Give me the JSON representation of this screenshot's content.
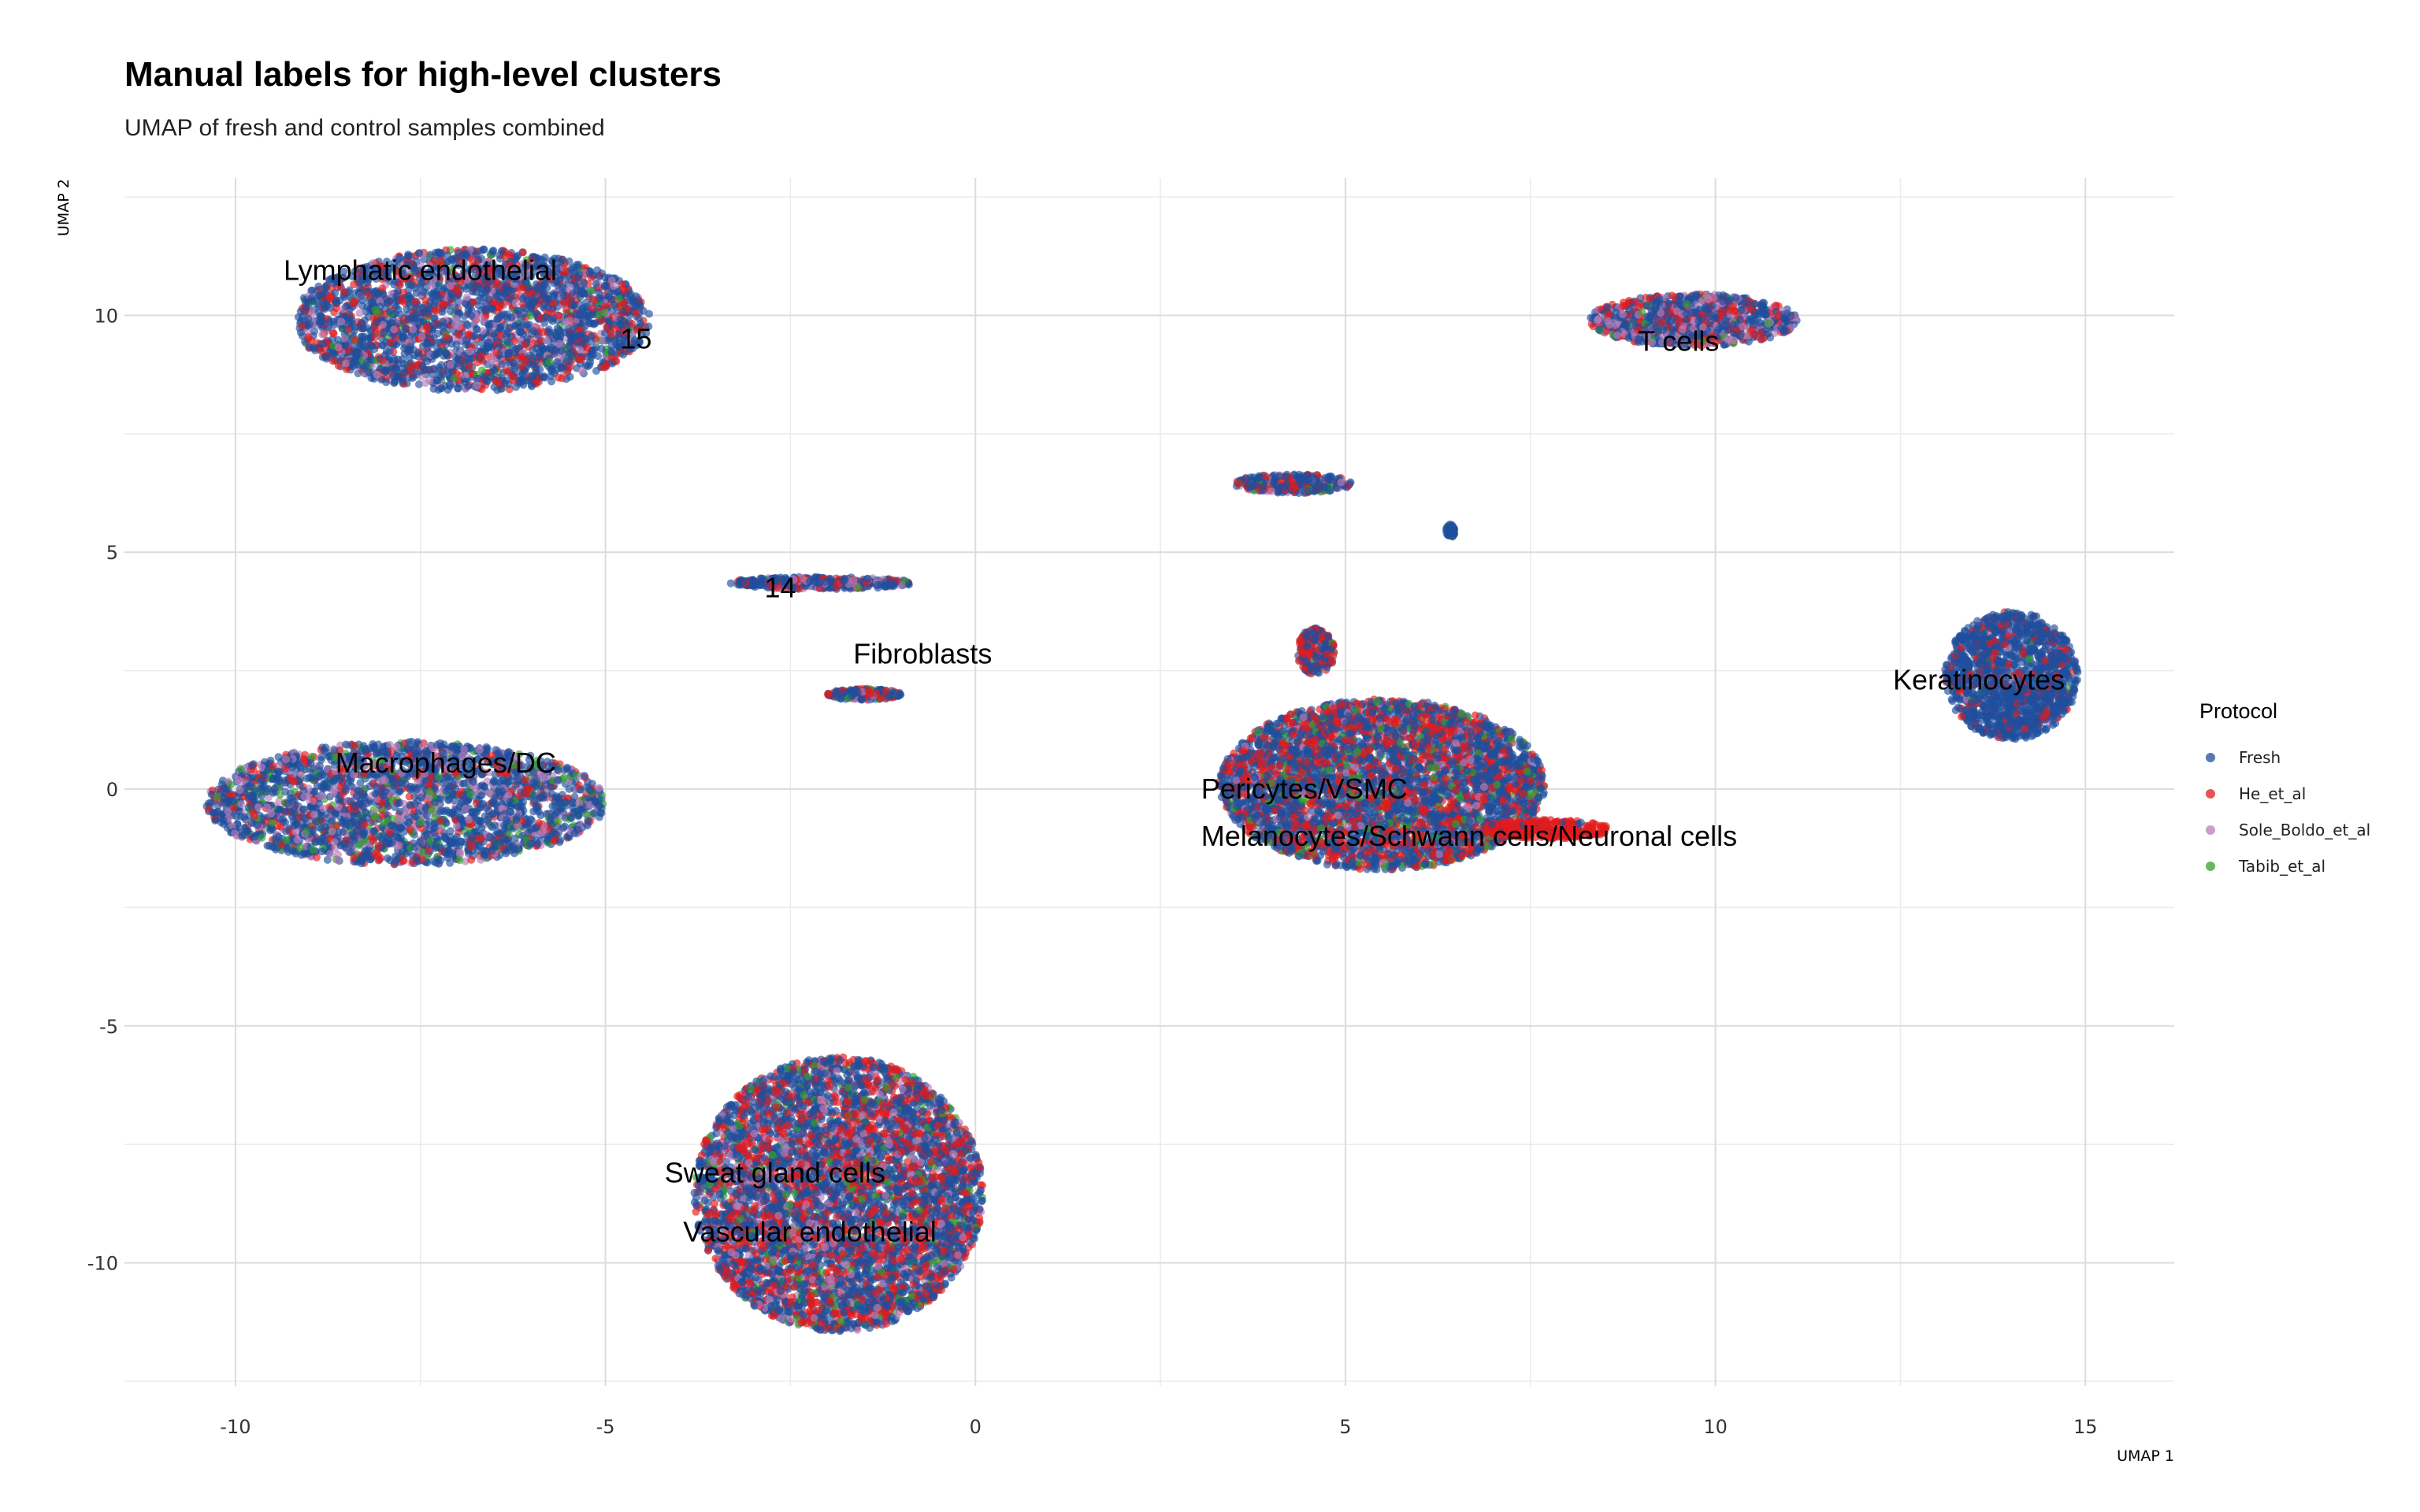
{
  "chart_data": {
    "type": "scatter",
    "title": "Manual labels for high-level clusters",
    "subtitle": "UMAP of fresh and control samples combined",
    "xlabel": "UMAP 1",
    "ylabel": "UMAP 2",
    "xlim": [
      -11.5,
      16.2
    ],
    "ylim": [
      -12.6,
      12.9
    ],
    "x_ticks": [
      -10,
      -5,
      0,
      5,
      10,
      15
    ],
    "y_ticks": [
      -10,
      -5,
      0,
      5,
      10
    ],
    "x_tick_labels": [
      "-10",
      "-5",
      "0",
      "5",
      "10",
      "15"
    ],
    "y_tick_labels": [
      "-10",
      "-5",
      "0",
      "5",
      "10"
    ],
    "grid": true,
    "legend": {
      "title": "Protocol",
      "position": "right",
      "entries": [
        {
          "name": "Fresh",
          "color": "#1f4e9c"
        },
        {
          "name": "He_et_al",
          "color": "#e31a1c"
        },
        {
          "name": "Sole_Boldo_et_al",
          "color": "#b87db8"
        },
        {
          "name": "Tabib_et_al",
          "color": "#33a02c"
        }
      ]
    },
    "series": [
      {
        "name": "Fresh",
        "color": "#1f4e9c"
      },
      {
        "name": "He_et_al",
        "color": "#e31a1c"
      },
      {
        "name": "Sole_Boldo_et_al",
        "color": "#b87db8"
      },
      {
        "name": "Tabib_et_al",
        "color": "#33a02c"
      }
    ],
    "clusters": [
      {
        "cx": -6.8,
        "cy": 9.9,
        "rx": 2.4,
        "ry": 1.5,
        "n": 2600,
        "mix": [
          0.66,
          0.2,
          0.1,
          0.04
        ]
      },
      {
        "cx": -7.7,
        "cy": -0.3,
        "rx": 2.7,
        "ry": 1.3,
        "n": 2600,
        "mix": [
          0.62,
          0.14,
          0.16,
          0.08
        ]
      },
      {
        "cx": -2.1,
        "cy": 4.35,
        "rx": 1.25,
        "ry": 0.13,
        "n": 400,
        "mix": [
          0.7,
          0.15,
          0.13,
          0.02
        ]
      },
      {
        "cx": -1.5,
        "cy": 2.0,
        "rx": 0.5,
        "ry": 0.12,
        "n": 200,
        "mix": [
          0.6,
          0.3,
          0.05,
          0.05
        ]
      },
      {
        "cx": 5.5,
        "cy": 0.1,
        "rx": 2.2,
        "ry": 1.8,
        "n": 4200,
        "mix": [
          0.58,
          0.3,
          0.05,
          0.07
        ]
      },
      {
        "cx": 4.6,
        "cy": 2.9,
        "rx": 0.25,
        "ry": 0.5,
        "n": 200,
        "mix": [
          0.5,
          0.45,
          0.02,
          0.03
        ]
      },
      {
        "cx": 7.7,
        "cy": -0.85,
        "rx": 0.9,
        "ry": 0.2,
        "n": 280,
        "mix": [
          0.15,
          0.85,
          0.0,
          0.0
        ]
      },
      {
        "cx": -1.85,
        "cy": -8.55,
        "rx": 1.95,
        "ry": 2.9,
        "n": 5200,
        "mix": [
          0.56,
          0.28,
          0.1,
          0.06
        ]
      },
      {
        "cx": 9.7,
        "cy": 9.9,
        "rx": 1.4,
        "ry": 0.55,
        "n": 1000,
        "mix": [
          0.54,
          0.22,
          0.22,
          0.02
        ]
      },
      {
        "cx": 4.3,
        "cy": 6.45,
        "rx": 0.8,
        "ry": 0.2,
        "n": 300,
        "mix": [
          0.66,
          0.22,
          0.06,
          0.06
        ]
      },
      {
        "cx": 6.42,
        "cy": 5.45,
        "rx": 0.06,
        "ry": 0.14,
        "n": 50,
        "mix": [
          0.84,
          0.0,
          0.0,
          0.16
        ]
      },
      {
        "cx": 14.0,
        "cy": 2.4,
        "rx": 0.9,
        "ry": 1.35,
        "n": 1400,
        "mix": [
          0.86,
          0.12,
          0.01,
          0.01
        ]
      }
    ],
    "annotations": [
      {
        "text": "Lymphatic endothelial",
        "x": -9.35,
        "y": 10.75
      },
      {
        "text": "15",
        "x": -4.8,
        "y": 9.3
      },
      {
        "text": "14",
        "x": -2.85,
        "y": 4.05
      },
      {
        "text": "Fibroblasts",
        "x": -1.65,
        "y": 2.65
      },
      {
        "text": "Macrophages/DC",
        "x": -8.65,
        "y": 0.35
      },
      {
        "text": "T cells",
        "x": 8.95,
        "y": 9.25
      },
      {
        "text": "Keratinocytes",
        "x": 12.4,
        "y": 2.1
      },
      {
        "text": "Pericytes/VSMC",
        "x": 3.05,
        "y": -0.2
      },
      {
        "text": "Melanocytes/Schwann cells/Neuronal cells",
        "x": 3.05,
        "y": -1.2
      },
      {
        "text": "Sweat gland cells",
        "x": -4.2,
        "y": -8.3
      },
      {
        "text": "Vascular endothelial",
        "x": -3.95,
        "y": -9.55
      }
    ]
  }
}
